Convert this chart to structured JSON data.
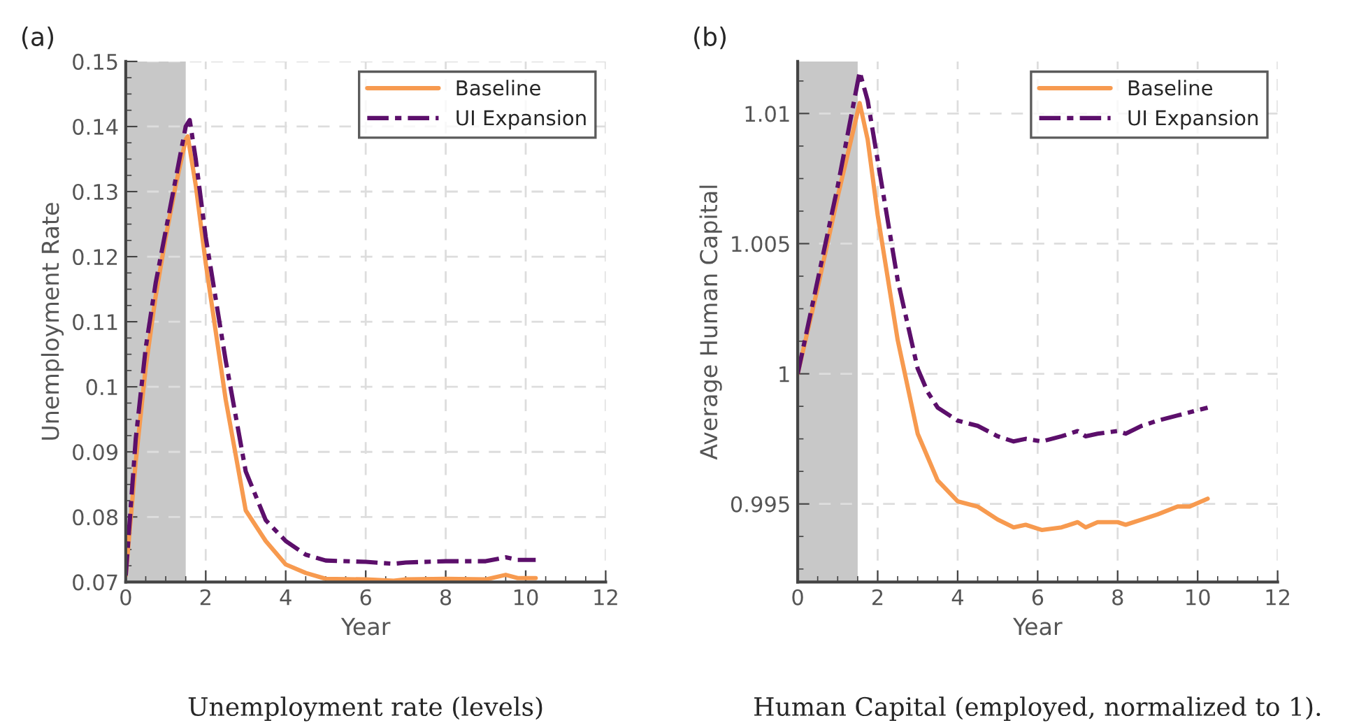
{
  "chart_data": [
    {
      "type": "line",
      "title": "(a)",
      "xlabel": "Year",
      "ylabel": "Unemployment Rate",
      "annotations": [
        "Unemployment rate (levels)"
      ],
      "xlim": [
        0,
        12
      ],
      "xticks": [
        0,
        2,
        4,
        6,
        8,
        10,
        12
      ],
      "ylim": [
        0.07,
        0.15
      ],
      "yticks": [
        0.07,
        0.08,
        0.09,
        0.1,
        0.11,
        0.12,
        0.13,
        0.14,
        0.15
      ],
      "grid": true,
      "legend": "top right",
      "bands": [
        {
          "axis": "x",
          "from": 0,
          "to": 1.5,
          "color": "#c8c8c8"
        }
      ],
      "series": [
        {
          "name": "Baseline",
          "color": "#f79a4f",
          "line_style": "solid",
          "x": [
            0,
            0.25,
            0.5,
            0.75,
            1.0,
            1.25,
            1.5,
            1.55,
            1.75,
            2.0,
            2.5,
            3.0,
            3.5,
            4.0,
            4.5,
            5.0,
            6.0,
            6.7,
            7.0,
            8.0,
            9.0,
            9.5,
            9.8,
            10.25
          ],
          "values": [
            0.071,
            0.0885,
            0.103,
            0.114,
            0.123,
            0.131,
            0.138,
            0.1385,
            0.131,
            0.119,
            0.098,
            0.081,
            0.0763,
            0.0727,
            0.0714,
            0.0705,
            0.0704,
            0.0702,
            0.0704,
            0.0705,
            0.0704,
            0.0711,
            0.0706,
            0.0706
          ]
        },
        {
          "name": "UI Expansion",
          "color": "#5c0f6b",
          "line_style": "dashdot",
          "x": [
            0,
            0.25,
            0.5,
            0.75,
            1.0,
            1.25,
            1.5,
            1.6,
            1.75,
            2.0,
            2.5,
            3.0,
            3.5,
            4.0,
            4.5,
            5.0,
            6.0,
            6.7,
            7.0,
            8.0,
            9.0,
            9.5,
            9.8,
            10.25
          ],
          "values": [
            0.071,
            0.092,
            0.106,
            0.116,
            0.124,
            0.132,
            0.14,
            0.141,
            0.135,
            0.123,
            0.104,
            0.087,
            0.0795,
            0.0763,
            0.0742,
            0.0733,
            0.0731,
            0.0728,
            0.073,
            0.0732,
            0.0732,
            0.0738,
            0.0734,
            0.0734
          ]
        }
      ]
    },
    {
      "type": "line",
      "title": "(b)",
      "xlabel": "Year",
      "ylabel": "Average Human Capital",
      "annotations": [
        "Human Capital (employed, normalized to 1)."
      ],
      "xlim": [
        0,
        12
      ],
      "xticks": [
        0,
        2,
        4,
        6,
        8,
        10,
        12
      ],
      "ylim": [
        0.992,
        1.012
      ],
      "yticks": [
        0.995,
        1,
        1.005,
        1.01
      ],
      "grid": true,
      "legend": "top right",
      "bands": [
        {
          "axis": "x",
          "from": 0,
          "to": 1.5,
          "color": "#c8c8c8"
        }
      ],
      "series": [
        {
          "name": "Baseline",
          "color": "#f79a4f",
          "line_style": "solid",
          "x": [
            0,
            0.5,
            1.0,
            1.55,
            1.75,
            2.0,
            2.5,
            3.0,
            3.5,
            4.0,
            4.5,
            5.0,
            5.4,
            5.7,
            6.1,
            6.6,
            7.0,
            7.2,
            7.5,
            8.0,
            8.2,
            8.6,
            9.0,
            9.5,
            9.8,
            10.25
          ],
          "values": [
            1.0,
            1.0033,
            1.0068,
            1.0104,
            1.009,
            1.0061,
            1.0013,
            0.9977,
            0.9959,
            0.9951,
            0.9949,
            0.9944,
            0.9941,
            0.9942,
            0.994,
            0.9941,
            0.9943,
            0.9941,
            0.9943,
            0.9943,
            0.9942,
            0.9944,
            0.9946,
            0.9949,
            0.9949,
            0.9952
          ]
        },
        {
          "name": "UI Expansion",
          "color": "#5c0f6b",
          "line_style": "dashdot",
          "x": [
            0,
            0.5,
            1.0,
            1.55,
            1.75,
            2.0,
            2.5,
            3.0,
            3.25,
            3.5,
            4.0,
            4.5,
            5.0,
            5.4,
            5.7,
            6.1,
            6.6,
            7.0,
            7.2,
            7.5,
            8.0,
            8.2,
            8.6,
            9.0,
            9.5,
            10.25
          ],
          "values": [
            1.0,
            1.0036,
            1.0072,
            1.0116,
            1.0105,
            1.0082,
            1.0036,
            1.0002,
            0.9993,
            0.9987,
            0.9982,
            0.998,
            0.9976,
            0.9974,
            0.9975,
            0.9974,
            0.9976,
            0.9978,
            0.9976,
            0.9977,
            0.9978,
            0.9977,
            0.998,
            0.9982,
            0.9984,
            0.9987
          ]
        }
      ]
    }
  ]
}
